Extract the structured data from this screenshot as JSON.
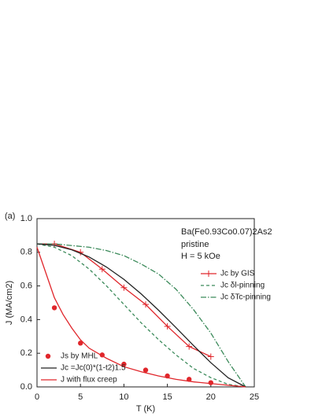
{
  "chart_data": {
    "type": "line",
    "panel_label": "(a)",
    "annotations": [
      "Ba(Fe0.93Co0.07)2As2",
      "pristine",
      "H = 5 kOe"
    ],
    "x_label": "T (K)",
    "y_label": "J (MA/cm2)",
    "xlim": [
      0,
      25
    ],
    "ylim": [
      0,
      1.0
    ],
    "xticks": [
      0,
      5,
      10,
      15,
      20,
      25
    ],
    "yticks": [
      {
        "value": 0,
        "label": "0.0"
      },
      0.2,
      0.4,
      0.6,
      0.8,
      {
        "value": 1.0,
        "label": "1.0"
      }
    ],
    "series": [
      {
        "name": "Jc by GIS",
        "color": "#e0262b",
        "style": "line-plus",
        "legend": "right",
        "x": [
          0,
          2,
          5,
          7.5,
          10,
          12.5,
          15,
          17.5,
          20
        ],
        "values": [
          0.85,
          0.85,
          0.8,
          0.7,
          0.59,
          0.49,
          0.36,
          0.24,
          0.18
        ]
      },
      {
        "name": "Jc δl-pinning",
        "color": "#3b8a5a",
        "style": "dashed",
        "legend": "right",
        "x": [
          0,
          2,
          4,
          6,
          8,
          10,
          12,
          14,
          16,
          18,
          20,
          22,
          24
        ],
        "values": [
          0.85,
          0.83,
          0.78,
          0.7,
          0.6,
          0.49,
          0.38,
          0.28,
          0.19,
          0.11,
          0.055,
          0.015,
          0
        ]
      },
      {
        "name": "Jc δTc-pinning",
        "color": "#3b8a5a",
        "style": "dashdot",
        "legend": "right",
        "x": [
          0,
          2,
          4,
          6,
          8,
          10,
          12,
          14,
          16,
          18,
          20,
          22,
          24
        ],
        "values": [
          0.85,
          0.85,
          0.84,
          0.83,
          0.81,
          0.78,
          0.73,
          0.67,
          0.58,
          0.46,
          0.32,
          0.15,
          0
        ]
      },
      {
        "name": "Js by MHL",
        "color": "#e0262b",
        "style": "dots",
        "legend": "left",
        "x": [
          2,
          5,
          7.5,
          10,
          12.5,
          15,
          17.5,
          20
        ],
        "values": [
          0.47,
          0.26,
          0.19,
          0.135,
          0.1,
          0.065,
          0.045,
          0.025
        ]
      },
      {
        "name": "Jc =Jc(0)*(1-t2)1.5",
        "color": "#222222",
        "style": "solid",
        "legend": "left",
        "x": [
          0,
          2,
          4,
          6,
          8,
          10,
          12,
          14,
          16,
          18,
          20,
          22,
          24
        ],
        "values": [
          0.85,
          0.841,
          0.815,
          0.772,
          0.712,
          0.639,
          0.552,
          0.455,
          0.352,
          0.246,
          0.144,
          0.054,
          0
        ]
      },
      {
        "name": "J with flux creep",
        "color": "#e0262b",
        "style": "solid",
        "legend": "left",
        "x": [
          0,
          1,
          2,
          3,
          4,
          5,
          6,
          8,
          10,
          12,
          14,
          16,
          18,
          20,
          22,
          24
        ],
        "values": [
          0.83,
          0.68,
          0.53,
          0.43,
          0.35,
          0.28,
          0.23,
          0.17,
          0.12,
          0.09,
          0.065,
          0.045,
          0.03,
          0.02,
          0.01,
          0
        ]
      }
    ]
  }
}
